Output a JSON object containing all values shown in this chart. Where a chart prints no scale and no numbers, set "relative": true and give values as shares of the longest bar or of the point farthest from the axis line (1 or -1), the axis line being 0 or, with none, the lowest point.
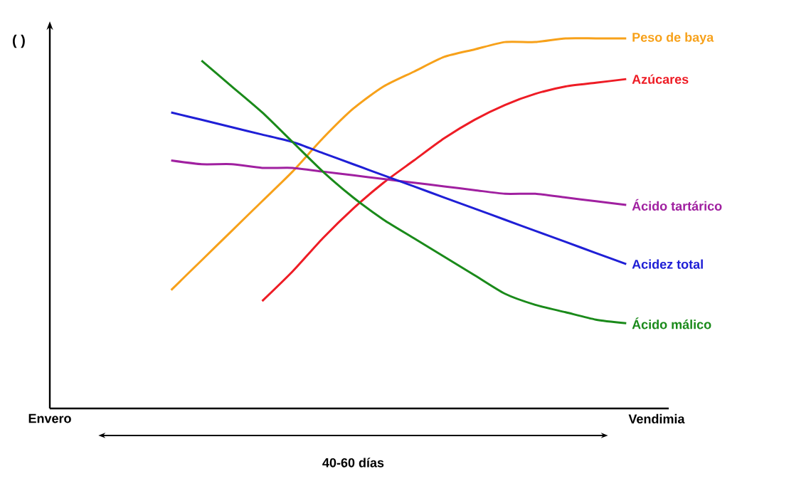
{
  "chart_data": {
    "type": "line",
    "relative": true,
    "ylabel": "( )",
    "categories": [
      "Envero",
      null,
      null,
      null,
      null,
      null,
      null,
      null,
      null,
      null,
      null,
      null,
      null,
      null,
      null,
      null,
      null,
      null,
      null,
      null,
      "Vendimia"
    ],
    "annotations": [
      "40-60 días"
    ],
    "legend": false,
    "marker": "none",
    "grid": false,
    "series": [
      {
        "name": "Peso de baya",
        "color": "#f7a11a",
        "values": [
          null,
          null,
          null,
          null,
          0.32,
          0.4,
          0.48,
          0.56,
          0.64,
          0.73,
          0.81,
          0.87,
          0.91,
          0.95,
          0.97,
          0.99,
          0.99,
          1,
          1,
          1,
          null
        ]
      },
      {
        "name": "Azúcares",
        "color": "#ee1c25",
        "values": [
          null,
          null,
          null,
          null,
          null,
          null,
          null,
          0.29,
          0.37,
          0.46,
          0.54,
          0.61,
          0.67,
          0.73,
          0.78,
          0.82,
          0.85,
          0.87,
          0.88,
          0.89,
          null
        ]
      },
      {
        "name": "Ácido tartárico",
        "color": "#a020a0",
        "values": [
          null,
          null,
          null,
          null,
          0.67,
          0.66,
          0.66,
          0.65,
          0.65,
          0.64,
          0.63,
          0.62,
          0.61,
          0.6,
          0.59,
          0.58,
          0.58,
          0.57,
          0.56,
          0.55,
          null
        ]
      },
      {
        "name": "Acidez total",
        "color": "#1f1fd6",
        "values": [
          null,
          null,
          null,
          null,
          0.8,
          0.78,
          0.76,
          0.74,
          0.72,
          0.69,
          0.66,
          0.63,
          0.6,
          0.57,
          0.54,
          0.51,
          0.48,
          0.45,
          0.42,
          0.39,
          null
        ]
      },
      {
        "name": "Ácido málico",
        "color": "#1a8a1a",
        "values": [
          null,
          null,
          null,
          null,
          null,
          0.94,
          0.87,
          0.8,
          0.72,
          0.64,
          0.57,
          0.51,
          0.46,
          0.41,
          0.36,
          0.31,
          0.28,
          0.26,
          0.24,
          0.23,
          null
        ]
      }
    ]
  }
}
